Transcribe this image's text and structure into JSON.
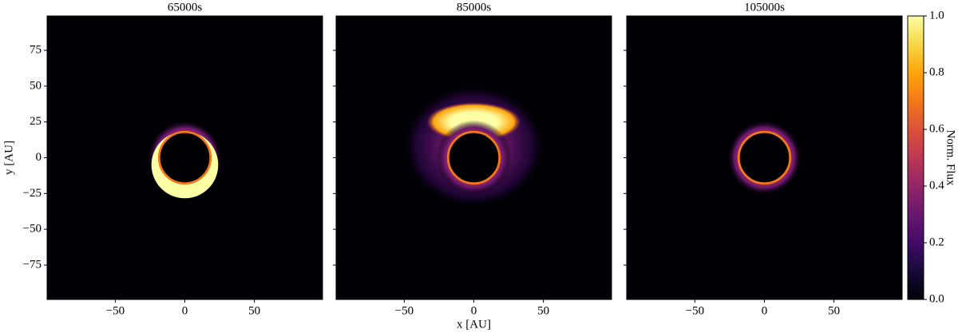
{
  "chart_data": [
    {
      "type": "image",
      "title": "65000s",
      "ylabel": "y [AU]",
      "xlim": [
        -99,
        99
      ],
      "ylim": [
        -99,
        99
      ],
      "xticks": [
        {
          "value": -50,
          "label": "−50"
        },
        0,
        50
      ],
      "yticks": [
        {
          "value": -75,
          "label": "−75"
        },
        {
          "value": -50,
          "label": "−50"
        },
        {
          "value": -25,
          "label": "−25"
        },
        0,
        25,
        50,
        75
      ]
    },
    {
      "type": "image",
      "title": "85000s",
      "xlabel": "x [AU]",
      "xlim": [
        -99,
        99
      ],
      "ylim": [
        -99,
        99
      ],
      "xticks": [
        {
          "value": -50,
          "label": "−50"
        },
        0,
        50
      ],
      "yticks": [
        -75,
        -50,
        -25,
        0,
        25,
        50,
        75
      ]
    },
    {
      "type": "image",
      "title": "105000s",
      "xlim": [
        -99,
        99
      ],
      "ylim": [
        -99,
        99
      ],
      "xticks": [
        {
          "value": -50,
          "label": "−50"
        },
        0,
        50
      ],
      "yticks": [
        -75,
        -50,
        -25,
        0,
        25,
        50,
        75
      ],
      "colorbar": {
        "label": "Norm. Flux",
        "colormap": "inferno",
        "lim": [
          0,
          1
        ],
        "ticks": [
          {
            "value": 0,
            "label": "0.0"
          },
          {
            "value": 0.2,
            "label": "0.2"
          },
          {
            "value": 0.4,
            "label": "0.4"
          },
          {
            "value": 0.6,
            "label": "0.6"
          },
          {
            "value": 0.8,
            "label": "0.8"
          },
          {
            "value": 1,
            "label": "1.0"
          }
        ]
      }
    }
  ]
}
